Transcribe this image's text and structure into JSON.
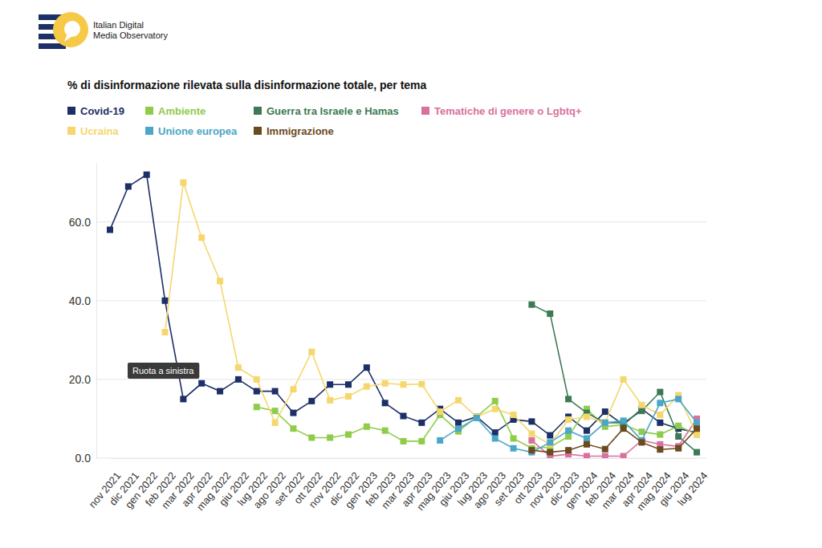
{
  "chart_data": {
    "type": "line",
    "logo": [
      "Italian Digital",
      "Media Observatory"
    ],
    "title": "% di disinformazione rilevata sulla disinformazione totale, per tema",
    "annotation": "Ruota a sinistra",
    "marker": "square",
    "grid": true,
    "legend": "top-left",
    "categories": [
      "nov 2021",
      "dic 2021",
      "gen 2022",
      "feb 2022",
      "mar 2022",
      "apr 2022",
      "mag 2022",
      "giu 2022",
      "lug 2022",
      "ago 2022",
      "set 2022",
      "ott 2022",
      "nov 2022",
      "dic 2022",
      "gen 2023",
      "feb 2023",
      "mar 2023",
      "apr 2023",
      "mag 2023",
      "giu 2023",
      "lug 2023",
      "ago 2023",
      "set 2023",
      "ott 2023",
      "nov 2023",
      "dic 2023",
      "gen 2024",
      "feb 2024",
      "mar 2024",
      "apr 2024",
      "mag 2024",
      "giu 2024",
      "lug 2024"
    ],
    "ylim": [
      0,
      75
    ],
    "yticks": [
      {
        "value": 0,
        "label": "0.0"
      },
      {
        "value": 20,
        "label": "20.0"
      },
      {
        "value": 40,
        "label": "40.0"
      },
      {
        "value": 60,
        "label": "60.0"
      }
    ],
    "series": [
      {
        "name": "Covid-19",
        "color": "#1c2f66",
        "values": [
          58,
          69,
          72,
          40,
          15,
          19,
          17,
          20,
          17,
          17,
          11.5,
          14.5,
          18.7,
          18.7,
          23,
          14,
          10.7,
          9,
          12.5,
          9,
          10.5,
          6.5,
          9.8,
          9.3,
          5.8,
          10.5,
          7,
          11.8,
          8.5,
          12.5,
          9,
          7.5,
          6.5
        ]
      },
      {
        "name": "Ambiente",
        "color": "#8fcc4a",
        "values": [
          null,
          null,
          null,
          null,
          null,
          null,
          null,
          null,
          13,
          12,
          7.5,
          5.2,
          5.2,
          6,
          8,
          7,
          4.3,
          4.3,
          11,
          6.8,
          10.5,
          14.5,
          5,
          2.5,
          2.8,
          5.5,
          12.5,
          8,
          8.5,
          6.7,
          6,
          8.2,
          6
        ]
      },
      {
        "name": "Guerra tra Israele e Hamas",
        "color": "#3c7a55",
        "values": [
          null,
          null,
          null,
          null,
          null,
          null,
          null,
          null,
          null,
          null,
          null,
          null,
          null,
          null,
          null,
          null,
          null,
          null,
          null,
          null,
          null,
          null,
          null,
          39,
          36.7,
          15,
          11.5,
          9,
          9,
          12,
          16.8,
          5.5,
          1.5
        ]
      },
      {
        "name": "Tematiche di genere o Lgbtq+",
        "color": "#d9719e",
        "values": [
          null,
          null,
          null,
          null,
          null,
          null,
          null,
          null,
          null,
          null,
          null,
          null,
          null,
          null,
          null,
          null,
          null,
          null,
          null,
          null,
          null,
          null,
          null,
          4.5,
          0.5,
          1,
          0.5,
          0.5,
          0.5,
          4.5,
          3.5,
          3,
          10
        ]
      },
      {
        "name": "Ucraina",
        "color": "#f5d76e",
        "values": [
          null,
          null,
          null,
          32,
          70,
          56,
          45,
          23,
          20,
          9,
          17.5,
          27,
          14.7,
          15.7,
          18.2,
          19,
          18.7,
          18.8,
          11.8,
          14.7,
          10.5,
          12.5,
          11,
          6.2,
          3.5,
          9.8,
          10.5,
          9,
          20,
          13.5,
          11,
          16,
          6
        ]
      },
      {
        "name": "Unione europea",
        "color": "#4ba6c8",
        "values": [
          null,
          null,
          null,
          null,
          null,
          null,
          null,
          null,
          null,
          null,
          null,
          null,
          null,
          null,
          null,
          null,
          null,
          null,
          4.5,
          7.5,
          10.2,
          5,
          2.5,
          1.5,
          4,
          7,
          5,
          9,
          9.5,
          4.5,
          14,
          15,
          9
        ]
      },
      {
        "name": "Immigrazione",
        "color": "#6b4a1e",
        "values": [
          null,
          null,
          null,
          null,
          null,
          null,
          null,
          null,
          null,
          null,
          null,
          null,
          null,
          null,
          null,
          null,
          null,
          null,
          null,
          null,
          null,
          null,
          null,
          2,
          1.5,
          2,
          3.5,
          2.3,
          7.5,
          4,
          2.2,
          2.5,
          7.5
        ]
      }
    ]
  }
}
